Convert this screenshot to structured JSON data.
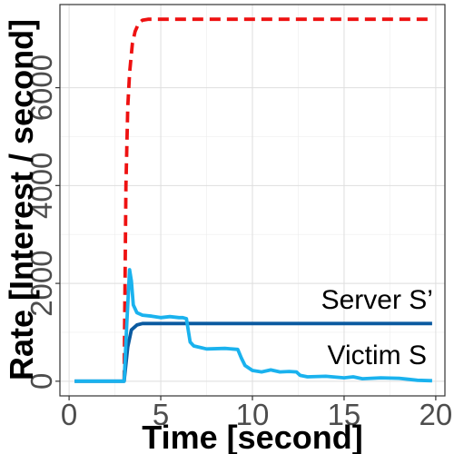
{
  "chart_data": {
    "type": "line",
    "title": "",
    "xlabel": "Time [second]",
    "ylabel": "Rate [Interest / second]",
    "xlim": [
      -0.5,
      20.5
    ],
    "ylim": [
      -300,
      7700
    ],
    "x_ticks": [
      0,
      5,
      10,
      15,
      20
    ],
    "x_tick_labels": [
      "0",
      "5",
      "10",
      "15",
      "20"
    ],
    "y_ticks": [
      0,
      2000,
      4000,
      6000
    ],
    "y_tick_labels": [
      "0",
      "2000",
      "4000",
      "6000"
    ],
    "grid": true,
    "legend": "none",
    "series": [
      {
        "key": "attacker",
        "color": "#ee1111",
        "dash": true,
        "x": [
          3.0,
          3.1,
          3.2,
          3.3,
          3.45,
          3.6,
          3.8,
          4.0,
          4.3,
          5,
          10,
          15,
          19.8
        ],
        "y": [
          0,
          4000,
          5600,
          6300,
          6900,
          7150,
          7320,
          7380,
          7400,
          7400,
          7400,
          7400,
          7400
        ]
      },
      {
        "key": "server",
        "name": "Server S’",
        "color": "#0b5aa0",
        "dash": false,
        "x": [
          0.3,
          3.0,
          3.2,
          3.4,
          3.7,
          4.0,
          5,
          10,
          15,
          19.8
        ],
        "y": [
          0,
          0,
          700,
          1050,
          1150,
          1180,
          1180,
          1180,
          1180,
          1180
        ],
        "label_at": [
          16.8,
          1480
        ]
      },
      {
        "key": "victim",
        "name": "Victim S",
        "color": "#1ab2ee",
        "dash": false,
        "x": [
          0.3,
          2.9,
          3.0,
          3.15,
          3.3,
          3.4,
          3.5,
          3.7,
          4.0,
          4.5,
          5.0,
          5.5,
          6.0,
          6.2,
          6.4,
          6.6,
          6.8,
          7.5,
          8.5,
          9.2,
          9.4,
          9.6,
          10.0,
          10.5,
          11.0,
          11.5,
          12.0,
          12.4,
          12.6,
          13.0,
          14.0,
          15.0,
          15.5,
          16.0,
          17.0,
          18.0,
          18.5,
          19.0,
          19.8
        ],
        "y": [
          0,
          0,
          0,
          1200,
          2280,
          2050,
          1560,
          1400,
          1350,
          1330,
          1300,
          1320,
          1300,
          1300,
          1280,
          800,
          720,
          660,
          670,
          650,
          470,
          320,
          220,
          190,
          230,
          190,
          200,
          190,
          120,
          90,
          100,
          70,
          90,
          50,
          70,
          60,
          40,
          20,
          10
        ],
        "label_at": [
          16.8,
          350
        ]
      }
    ]
  }
}
